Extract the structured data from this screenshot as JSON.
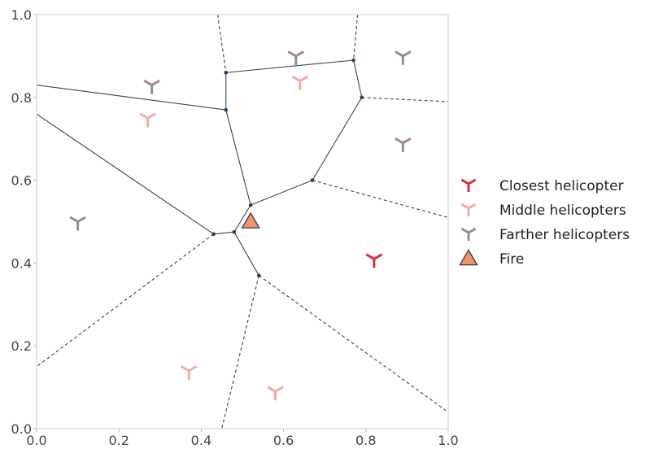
{
  "chart_data": {
    "type": "scatter",
    "title": "",
    "xlabel": "",
    "ylabel": "",
    "xlim": [
      0.0,
      1.0
    ],
    "ylim": [
      0.0,
      1.0
    ],
    "x_ticks": [
      "0.0",
      "0.2",
      "0.4",
      "0.6",
      "0.8",
      "1.0"
    ],
    "y_ticks": [
      "0.0",
      "0.2",
      "0.4",
      "0.6",
      "0.8",
      "1.0"
    ],
    "grid": false,
    "legend_position": "right",
    "legend": [
      {
        "label": "Closest helicopter",
        "marker": "tri-down",
        "color": "#d62f3a"
      },
      {
        "label": "Middle helicopters",
        "marker": "tri-down",
        "color": "#f4a8ab"
      },
      {
        "label": "Farther helicopters",
        "marker": "tri-down",
        "color": "#9e8a8c"
      },
      {
        "label": "Fire",
        "marker": "triangle",
        "color": "#f0926f"
      }
    ],
    "series": [
      {
        "name": "Closest helicopter",
        "marker": "tri-down",
        "color": "#d62f3a",
        "points": [
          [
            0.82,
            0.41
          ]
        ]
      },
      {
        "name": "Middle helicopters",
        "marker": "tri-down",
        "color": "#f4a8ab",
        "points": [
          [
            0.27,
            0.75
          ],
          [
            0.64,
            0.84
          ],
          [
            0.37,
            0.14
          ],
          [
            0.58,
            0.09
          ]
        ]
      },
      {
        "name": "Farther helicopters",
        "marker": "tri-down",
        "color": "#9e8a8c",
        "points": [
          [
            0.28,
            0.83
          ],
          [
            0.63,
            0.9
          ],
          [
            0.89,
            0.9
          ],
          [
            0.89,
            0.69
          ],
          [
            0.1,
            0.5
          ]
        ]
      },
      {
        "name": "Fire",
        "marker": "triangle",
        "color": "#f0926f",
        "points": [
          [
            0.52,
            0.5
          ]
        ]
      }
    ],
    "voronoi_vertices": [
      [
        0.46,
        0.86
      ],
      [
        0.77,
        0.89
      ],
      [
        0.79,
        0.8
      ],
      [
        0.46,
        0.77
      ],
      [
        0.67,
        0.6
      ],
      [
        0.52,
        0.54
      ],
      [
        0.43,
        0.47
      ],
      [
        0.48,
        0.475
      ],
      [
        0.54,
        0.37
      ]
    ],
    "voronoi_edges_solid": [
      [
        [
          0.46,
          0.86
        ],
        [
          0.77,
          0.89
        ]
      ],
      [
        [
          0.77,
          0.89
        ],
        [
          0.79,
          0.8
        ]
      ],
      [
        [
          0.79,
          0.8
        ],
        [
          0.67,
          0.6
        ]
      ],
      [
        [
          0.67,
          0.6
        ],
        [
          0.52,
          0.54
        ]
      ],
      [
        [
          0.46,
          0.86
        ],
        [
          0.46,
          0.77
        ]
      ],
      [
        [
          0.46,
          0.77
        ],
        [
          0.52,
          0.54
        ]
      ],
      [
        [
          0.0,
          0.83
        ],
        [
          0.46,
          0.77
        ]
      ],
      [
        [
          0.0,
          0.76
        ],
        [
          0.43,
          0.47
        ]
      ],
      [
        [
          0.43,
          0.47
        ],
        [
          0.48,
          0.475
        ]
      ],
      [
        [
          0.48,
          0.475
        ],
        [
          0.52,
          0.54
        ]
      ],
      [
        [
          0.48,
          0.475
        ],
        [
          0.54,
          0.37
        ]
      ]
    ],
    "voronoi_edges_dashed": [
      [
        [
          0.44,
          1.0
        ],
        [
          0.46,
          0.86
        ]
      ],
      [
        [
          0.78,
          1.0
        ],
        [
          0.77,
          0.89
        ]
      ],
      [
        [
          0.79,
          0.8
        ],
        [
          1.0,
          0.79
        ]
      ],
      [
        [
          0.67,
          0.6
        ],
        [
          1.0,
          0.51
        ]
      ],
      [
        [
          0.43,
          0.47
        ],
        [
          0.0,
          0.15
        ]
      ],
      [
        [
          0.54,
          0.37
        ],
        [
          0.45,
          0.0
        ]
      ],
      [
        [
          0.54,
          0.37
        ],
        [
          1.0,
          0.04
        ]
      ]
    ]
  }
}
